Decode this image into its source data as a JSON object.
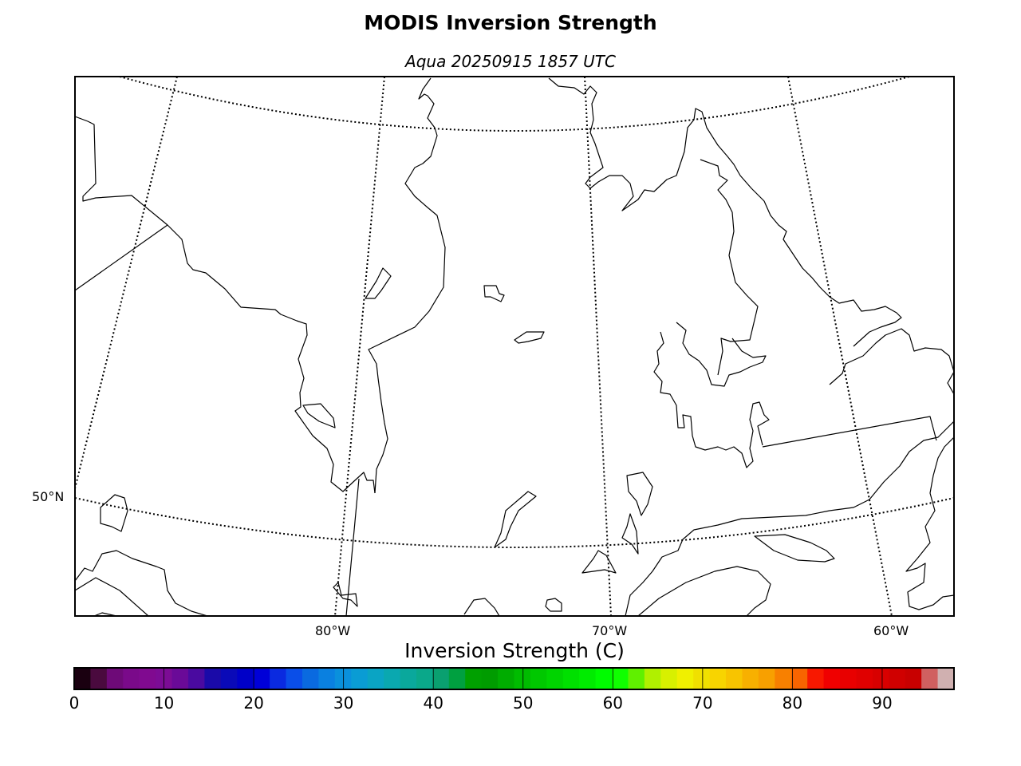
{
  "title": "MODIS Inversion Strength",
  "subtitle": "Aqua 20250915 1857 UTC",
  "map": {
    "meridian_labels": [
      "80°W",
      "70°W",
      "60°W"
    ],
    "parallel_labels": [
      "50°N"
    ]
  },
  "colorbar": {
    "label": "Inversion Strength (C)",
    "ticks": [
      "0",
      "10",
      "20",
      "30",
      "40",
      "50",
      "60",
      "70",
      "80",
      "90"
    ],
    "range": [
      0,
      98
    ],
    "colors": [
      "#1a0010",
      "#4a0a3e",
      "#6e0a78",
      "#7a0a8a",
      "#800a90",
      "#7c0c95",
      "#6a0a98",
      "#4a0aa0",
      "#1a0aa8",
      "#0a0ab8",
      "#0000c8",
      "#0000d8",
      "#0a2ae0",
      "#0a4ee8",
      "#0a6ae0",
      "#0a80e0",
      "#0a90dc",
      "#0a9cd4",
      "#0aa4c4",
      "#0aa8b0",
      "#0aa89c",
      "#0aa88a",
      "#0aa070",
      "#00a040",
      "#00a000",
      "#009c00",
      "#00ac00",
      "#00bc00",
      "#00c800",
      "#00d400",
      "#00e000",
      "#00ec00",
      "#00fc00",
      "#10ff00",
      "#60f000",
      "#b0f000",
      "#d8f000",
      "#f0f000",
      "#f0e000",
      "#f8d400",
      "#f8c400",
      "#f8b000",
      "#f8a000",
      "#f88000",
      "#f86400",
      "#f81800",
      "#f00000",
      "#e80000",
      "#e00000",
      "#d80000",
      "#d00000",
      "#c80000",
      "#d06060",
      "#d0b0b0"
    ]
  }
}
